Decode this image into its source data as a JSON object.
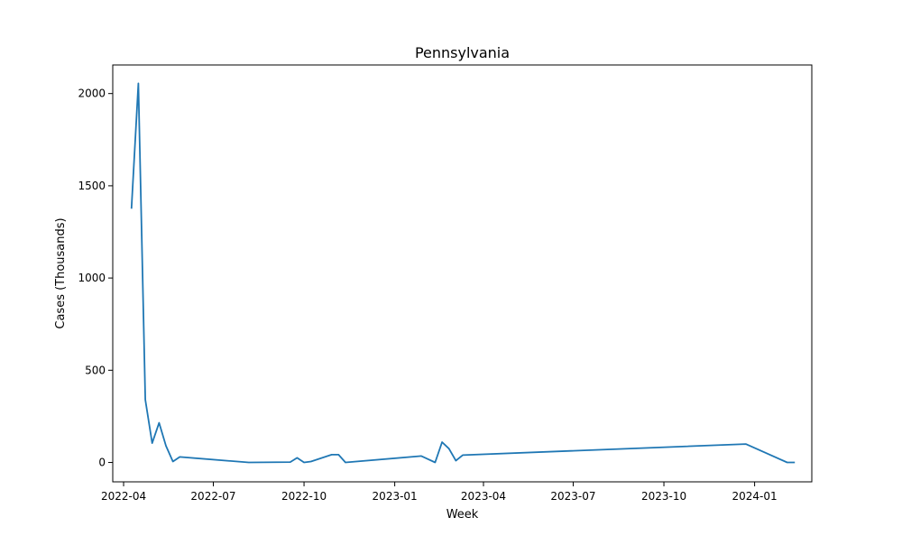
{
  "chart_data": {
    "type": "line",
    "title": "Pennsylvania",
    "xlabel": "Week",
    "ylabel": "Cases (Thousands)",
    "x_axis_type": "date",
    "xlim": [
      "2022-03-21",
      "2024-02-28"
    ],
    "ylim": [
      -105,
      2155
    ],
    "x_ticks": [
      {
        "date": "2022-04-01",
        "label": "2022-04"
      },
      {
        "date": "2022-07-01",
        "label": "2022-07"
      },
      {
        "date": "2022-10-01",
        "label": "2022-10"
      },
      {
        "date": "2023-01-01",
        "label": "2023-01"
      },
      {
        "date": "2023-04-01",
        "label": "2023-04"
      },
      {
        "date": "2023-07-01",
        "label": "2023-07"
      },
      {
        "date": "2023-10-01",
        "label": "2023-10"
      },
      {
        "date": "2024-01-01",
        "label": "2024-01"
      }
    ],
    "y_ticks": [
      0,
      500,
      1000,
      1500,
      2000
    ],
    "grid": false,
    "series": [
      {
        "color": "#1f77b4",
        "x": [
          "2022-04-09",
          "2022-04-16",
          "2022-04-23",
          "2022-04-30",
          "2022-05-07",
          "2022-05-14",
          "2022-05-21",
          "2022-05-28",
          "2022-08-06",
          "2022-09-17",
          "2022-09-24",
          "2022-10-01",
          "2022-10-08",
          "2022-10-29",
          "2022-11-05",
          "2022-11-12",
          "2023-01-28",
          "2023-02-11",
          "2023-02-18",
          "2023-02-25",
          "2023-03-04",
          "2023-03-11",
          "2023-12-23",
          "2024-02-03",
          "2024-02-10"
        ],
        "y": [
          1380,
          2055,
          340,
          105,
          215,
          90,
          5,
          30,
          0,
          2,
          25,
          0,
          5,
          42,
          42,
          0,
          35,
          0,
          110,
          75,
          10,
          40,
          100,
          0,
          0
        ]
      }
    ]
  }
}
